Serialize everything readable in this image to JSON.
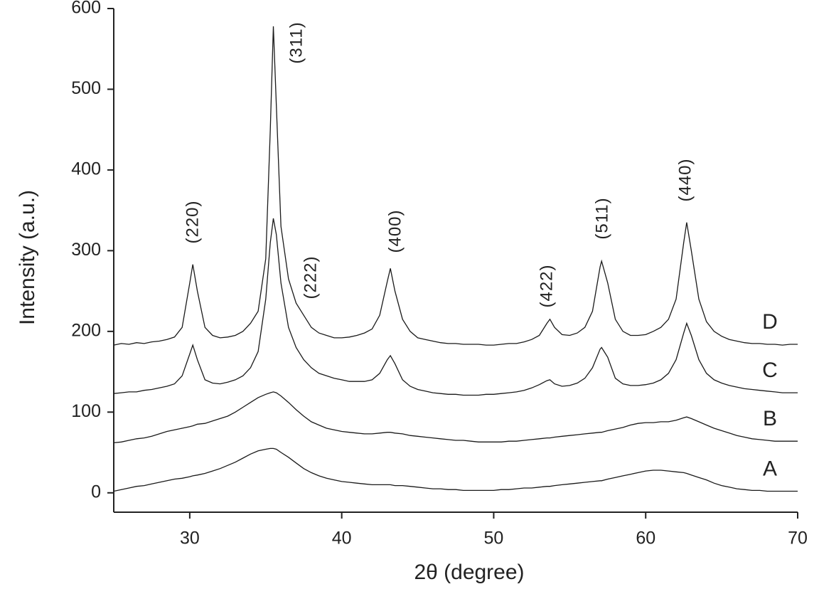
{
  "chart_data": {
    "type": "line",
    "xlabel": "2θ (degree)",
    "ylabel": "Intensity (a.u.)",
    "xlim": [
      25,
      70
    ],
    "ylim": [
      -24,
      600
    ],
    "xticks": [
      30,
      40,
      50,
      60,
      70
    ],
    "yticks": [
      0,
      100,
      200,
      300,
      400,
      500,
      600
    ],
    "annotations": [
      "(220)",
      "(311)",
      "(222)",
      "(400)",
      "(422)",
      "(511)",
      "(440)"
    ],
    "x": [
      25,
      25.5,
      26,
      26.5,
      27,
      27.5,
      28,
      28.5,
      29,
      29.5,
      30,
      30.2,
      30.5,
      31,
      31.5,
      32,
      32.5,
      33,
      33.5,
      34,
      34.5,
      35,
      35.3,
      35.5,
      35.7,
      36,
      36.5,
      37,
      37.5,
      38,
      38.5,
      39,
      39.5,
      40,
      40.5,
      41,
      41.5,
      42,
      42.5,
      43,
      43.2,
      43.5,
      44,
      44.5,
      45,
      45.5,
      46,
      46.5,
      47,
      47.5,
      48,
      48.5,
      49,
      49.5,
      50,
      50.5,
      51,
      51.5,
      52,
      52.5,
      53,
      53.5,
      53.7,
      54,
      54.5,
      55,
      55.5,
      56,
      56.5,
      57,
      57.1,
      57.5,
      58,
      58.5,
      59,
      59.5,
      60,
      60.5,
      61,
      61.5,
      62,
      62.5,
      62.7,
      63,
      63.5,
      64,
      64.5,
      65,
      65.5,
      66,
      66.5,
      67,
      67.5,
      68,
      68.5,
      69,
      69.5,
      70
    ],
    "series": [
      {
        "name": "A",
        "color": "#1a1a1a",
        "values": [
          2,
          4,
          6,
          8,
          9,
          11,
          13,
          15,
          17,
          18,
          20,
          21,
          22,
          24,
          27,
          30,
          34,
          38,
          43,
          48,
          52,
          54,
          55,
          55,
          54,
          50,
          44,
          37,
          30,
          25,
          21,
          18,
          16,
          14,
          13,
          12,
          11,
          10,
          10,
          10,
          10,
          9,
          9,
          8,
          7,
          6,
          5,
          5,
          4,
          4,
          3,
          3,
          3,
          3,
          3,
          4,
          4,
          5,
          6,
          6,
          7,
          8,
          8,
          9,
          10,
          11,
          12,
          13,
          14,
          15,
          15,
          17,
          19,
          21,
          23,
          25,
          27,
          28,
          28,
          27,
          26,
          25,
          24,
          22,
          19,
          16,
          12,
          9,
          7,
          5,
          4,
          3,
          3,
          2,
          2,
          2,
          2,
          2
        ]
      },
      {
        "name": "B",
        "color": "#1a1a1a",
        "values": [
          62,
          63,
          65,
          67,
          68,
          70,
          73,
          76,
          78,
          80,
          82,
          83,
          85,
          86,
          89,
          92,
          95,
          100,
          106,
          112,
          118,
          122,
          124,
          125,
          124,
          120,
          112,
          103,
          95,
          88,
          84,
          80,
          78,
          76,
          75,
          74,
          73,
          73,
          74,
          75,
          75,
          74,
          73,
          71,
          70,
          69,
          68,
          67,
          66,
          65,
          65,
          64,
          63,
          63,
          63,
          63,
          64,
          64,
          65,
          66,
          67,
          68,
          68,
          69,
          70,
          71,
          72,
          73,
          74,
          75,
          75,
          77,
          79,
          81,
          84,
          86,
          87,
          87,
          88,
          88,
          90,
          93,
          94,
          92,
          88,
          84,
          80,
          77,
          74,
          71,
          69,
          67,
          66,
          65,
          64,
          64,
          64,
          64
        ]
      },
      {
        "name": "C",
        "color": "#1a1a1a",
        "values": [
          123,
          124,
          125,
          125,
          127,
          128,
          130,
          132,
          135,
          145,
          172,
          183,
          165,
          140,
          136,
          135,
          137,
          140,
          145,
          155,
          175,
          240,
          310,
          340,
          320,
          260,
          205,
          180,
          165,
          155,
          148,
          145,
          142,
          140,
          138,
          138,
          138,
          140,
          148,
          165,
          170,
          160,
          140,
          132,
          128,
          126,
          124,
          123,
          122,
          122,
          121,
          121,
          121,
          122,
          122,
          123,
          124,
          125,
          127,
          130,
          134,
          139,
          140,
          135,
          132,
          133,
          136,
          142,
          155,
          178,
          180,
          168,
          142,
          135,
          133,
          133,
          134,
          136,
          140,
          148,
          165,
          198,
          210,
          195,
          165,
          148,
          140,
          136,
          133,
          131,
          129,
          128,
          127,
          126,
          125,
          124,
          124,
          124
        ]
      },
      {
        "name": "D",
        "color": "#1a1a1a",
        "values": [
          183,
          185,
          184,
          186,
          185,
          187,
          188,
          190,
          193,
          205,
          260,
          283,
          250,
          205,
          195,
          192,
          193,
          195,
          200,
          210,
          225,
          290,
          450,
          578,
          480,
          330,
          265,
          235,
          220,
          205,
          198,
          195,
          192,
          192,
          193,
          195,
          198,
          203,
          220,
          262,
          278,
          250,
          215,
          200,
          192,
          190,
          188,
          186,
          185,
          185,
          184,
          184,
          184,
          183,
          183,
          184,
          185,
          185,
          187,
          190,
          195,
          210,
          215,
          205,
          196,
          195,
          198,
          205,
          225,
          280,
          287,
          260,
          215,
          200,
          195,
          195,
          196,
          200,
          205,
          215,
          240,
          310,
          335,
          300,
          240,
          212,
          200,
          194,
          190,
          188,
          186,
          185,
          185,
          184,
          184,
          183,
          184,
          184
        ]
      }
    ]
  }
}
